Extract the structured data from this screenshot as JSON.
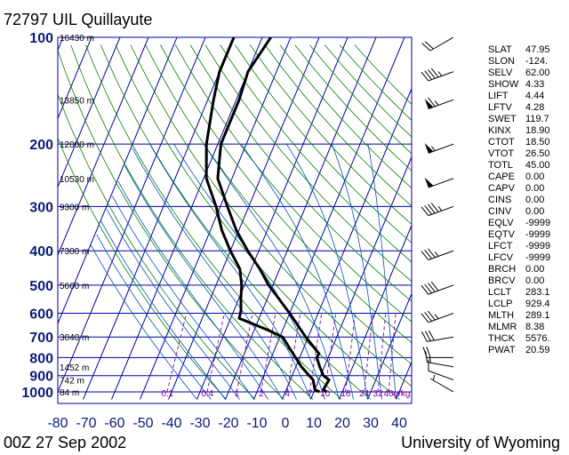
{
  "header": {
    "station": "72797 UIL Quillayute",
    "time": "00Z 27 Sep 2002",
    "credit": "University of Wyoming"
  },
  "indices": [
    {
      "name": "SLAT",
      "value": "47.95"
    },
    {
      "name": "SLON",
      "value": "-124."
    },
    {
      "name": "SELV",
      "value": "62.00"
    },
    {
      "name": "SHOW",
      "value": "4.33"
    },
    {
      "name": "LIFT",
      "value": "4.44"
    },
    {
      "name": "LFTV",
      "value": "4.28"
    },
    {
      "name": "SWET",
      "value": "119.7"
    },
    {
      "name": "KINX",
      "value": "18.90"
    },
    {
      "name": "CTOT",
      "value": "18.50"
    },
    {
      "name": "VTOT",
      "value": "26.50"
    },
    {
      "name": "TOTL",
      "value": "45.00"
    },
    {
      "name": "CAPE",
      "value": "0.00"
    },
    {
      "name": "CAPV",
      "value": "0.00"
    },
    {
      "name": "CINS",
      "value": "0.00"
    },
    {
      "name": "CINV",
      "value": "0.00"
    },
    {
      "name": "EQLV",
      "value": "-9999"
    },
    {
      "name": "EQTV",
      "value": "-9999"
    },
    {
      "name": "LFCT",
      "value": "-9999"
    },
    {
      "name": "LFCV",
      "value": "-9999"
    },
    {
      "name": "BRCH",
      "value": "0.00"
    },
    {
      "name": "BRCV",
      "value": "0.00"
    },
    {
      "name": "LCLT",
      "value": "283.1"
    },
    {
      "name": "LCLP",
      "value": "929.4"
    },
    {
      "name": "MLTH",
      "value": "289.1"
    },
    {
      "name": "MLMR",
      "value": "8.38"
    },
    {
      "name": "THCK",
      "value": "5576."
    },
    {
      "name": "PWAT",
      "value": "20.59"
    }
  ],
  "colors": {
    "axis_text": "#0a1a7a",
    "grid": "#0000a0",
    "dry_adiabat": "#008000",
    "moist_adiabat": "#0050c0",
    "mixing_ratio": "#8000a0",
    "profile": "#000000"
  },
  "chart_data": {
    "type": "skew-t",
    "x_ticks": [
      -80,
      -70,
      -60,
      -50,
      -40,
      -30,
      -20,
      -10,
      0,
      10,
      20,
      30,
      40
    ],
    "y_ticks": [
      100,
      200,
      300,
      400,
      500,
      600,
      700,
      800,
      900,
      1000
    ],
    "xlim": [
      -80,
      45
    ],
    "ylim": [
      1000,
      100
    ],
    "y_scale": "log",
    "height_labels": [
      {
        "p": 100,
        "label": "16430 m"
      },
      {
        "p": 150,
        "label": "13850 m"
      },
      {
        "p": 200,
        "label": "12000 m"
      },
      {
        "p": 250,
        "label": "10530 m"
      },
      {
        "p": 300,
        "label": "9300 m"
      },
      {
        "p": 400,
        "label": "7300 m"
      },
      {
        "p": 500,
        "label": "5660 m"
      },
      {
        "p": 700,
        "label": "3040 m"
      },
      {
        "p": 850,
        "label": "1452 m"
      },
      {
        "p": 925,
        "label": "742 m"
      },
      {
        "p": 1000,
        "label": "84 m"
      }
    ],
    "mixing_ratio_labels": [
      "0.1",
      "0.4",
      "1",
      "2",
      "4",
      "7",
      "10",
      "16",
      "24",
      "32",
      "40",
      "g/kg"
    ],
    "temperature": [
      {
        "p": 1000,
        "t": 14.4
      },
      {
        "p": 985,
        "t": 13.0
      },
      {
        "p": 925,
        "t": 13.6
      },
      {
        "p": 900,
        "t": 11.0
      },
      {
        "p": 850,
        "t": 8.4
      },
      {
        "p": 800,
        "t": 6.0
      },
      {
        "p": 780,
        "t": 6.2
      },
      {
        "p": 700,
        "t": -0.9
      },
      {
        "p": 600,
        "t": -10.0
      },
      {
        "p": 500,
        "t": -21.5
      },
      {
        "p": 450,
        "t": -27.0
      },
      {
        "p": 400,
        "t": -33.9
      },
      {
        "p": 350,
        "t": -40.9
      },
      {
        "p": 300,
        "t": -47.5
      },
      {
        "p": 250,
        "t": -55.0
      },
      {
        "p": 200,
        "t": -58.9
      },
      {
        "p": 150,
        "t": -59.0
      },
      {
        "p": 125,
        "t": -60.0
      },
      {
        "p": 100,
        "t": -57.0
      }
    ],
    "dewpoint": [
      {
        "p": 1000,
        "t": 12.0
      },
      {
        "p": 985,
        "t": 10.0
      },
      {
        "p": 925,
        "t": 8.0
      },
      {
        "p": 900,
        "t": 6.0
      },
      {
        "p": 850,
        "t": 2.0
      },
      {
        "p": 800,
        "t": -1.5
      },
      {
        "p": 700,
        "t": -9.0
      },
      {
        "p": 670,
        "t": -15.0
      },
      {
        "p": 620,
        "t": -27.0
      },
      {
        "p": 590,
        "t": -27.5
      },
      {
        "p": 540,
        "t": -29.5
      },
      {
        "p": 500,
        "t": -31.0
      },
      {
        "p": 450,
        "t": -34.0
      },
      {
        "p": 400,
        "t": -40.0
      },
      {
        "p": 350,
        "t": -46.0
      },
      {
        "p": 300,
        "t": -51.5
      },
      {
        "p": 250,
        "t": -59.0
      },
      {
        "p": 200,
        "t": -64.0
      },
      {
        "p": 150,
        "t": -68.0
      },
      {
        "p": 125,
        "t": -70.0
      },
      {
        "p": 100,
        "t": -70.0
      }
    ],
    "wind_barbs": [
      {
        "p": 1000,
        "dir": 300,
        "kt": 5
      },
      {
        "p": 925,
        "dir": 290,
        "kt": 10
      },
      {
        "p": 850,
        "dir": 280,
        "kt": 15
      },
      {
        "p": 800,
        "dir": 270,
        "kt": 20
      },
      {
        "p": 700,
        "dir": 260,
        "kt": 30
      },
      {
        "p": 600,
        "dir": 250,
        "kt": 35
      },
      {
        "p": 500,
        "dir": 250,
        "kt": 40
      },
      {
        "p": 400,
        "dir": 250,
        "kt": 35
      },
      {
        "p": 300,
        "dir": 250,
        "kt": 45
      },
      {
        "p": 250,
        "dir": 250,
        "kt": 50
      },
      {
        "p": 200,
        "dir": 250,
        "kt": 55
      },
      {
        "p": 150,
        "dir": 250,
        "kt": 65
      },
      {
        "p": 125,
        "dir": 250,
        "kt": 45
      },
      {
        "p": 100,
        "dir": 240,
        "kt": 20
      }
    ]
  }
}
